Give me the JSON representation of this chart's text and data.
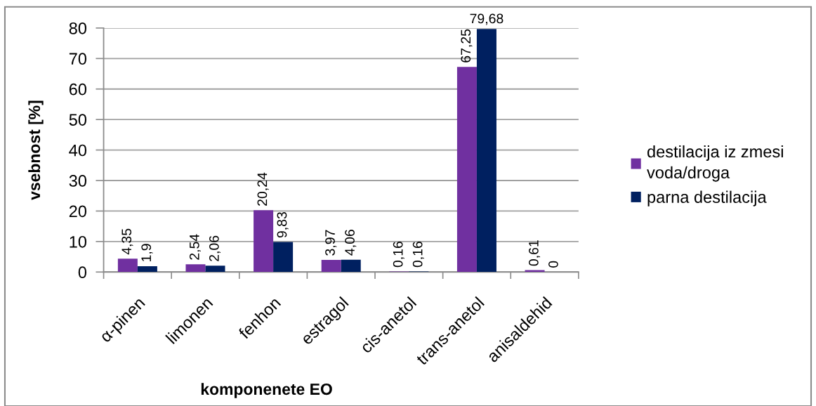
{
  "chart_data": {
    "type": "bar",
    "xlabel": "komponenete EO",
    "ylabel": "vsebnost [%]",
    "categories": [
      "α-pinen",
      "limonen",
      "fenhon",
      "estragol",
      "cis-anetol",
      "trans-anetol",
      "anisaldehid"
    ],
    "series": [
      {
        "name": "destilacija iz zmesi\nvoda/droga",
        "color": "#7030a0",
        "values": [
          4.35,
          2.54,
          20.24,
          3.97,
          0.16,
          67.25,
          0.61
        ],
        "value_labels": [
          "4,35",
          "2,54",
          "20,24",
          "3,97",
          "0,16",
          "67,25",
          "0,61"
        ]
      },
      {
        "name": "parna destilacija",
        "color": "#002060",
        "values": [
          1.9,
          2.06,
          9.83,
          4.06,
          0.16,
          79.68,
          0
        ],
        "value_labels": [
          "1,9",
          "2,06",
          "9,83",
          "4,06",
          "0,16",
          "79,68",
          "0"
        ]
      }
    ],
    "ylim": [
      0,
      80
    ],
    "yticks": [
      0,
      10,
      20,
      30,
      40,
      50,
      60,
      70,
      80
    ],
    "grid": "y",
    "legend": "right"
  }
}
